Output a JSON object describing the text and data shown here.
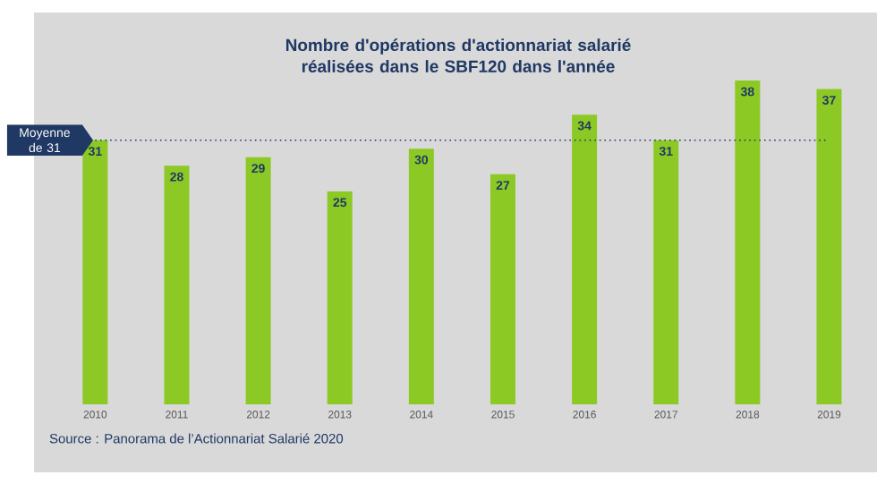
{
  "chart_data": {
    "type": "bar",
    "title": "Nombre d'opérations d'actionnariat salarié réalisées dans le SBF120 dans l'année",
    "categories": [
      "2010",
      "2011",
      "2012",
      "2013",
      "2014",
      "2015",
      "2016",
      "2017",
      "2018",
      "2019"
    ],
    "values": [
      31,
      28,
      29,
      25,
      30,
      27,
      34,
      31,
      38,
      37
    ],
    "color": "#8cc924",
    "data_labels": true,
    "ref_lines": [
      {
        "axis": "y",
        "value": 31,
        "label": "Moyenne de 31",
        "color": "#1f3864",
        "line_style": "dotted"
      }
    ],
    "annotations": [
      "Source : Panorama de l’Actionnariat Salarié 2020"
    ]
  }
}
